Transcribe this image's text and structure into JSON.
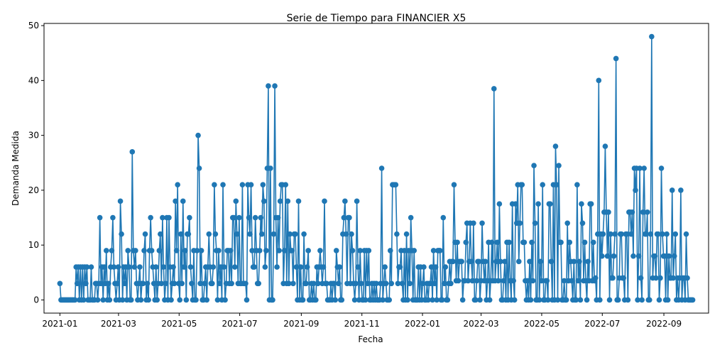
{
  "chart_data": {
    "type": "line",
    "title": "Serie de Tiempo para FINANCIER X5",
    "xlabel": "Fecha",
    "ylabel": "Demanda Medida",
    "xlim": [
      "2020-12-16",
      "2022-10-16"
    ],
    "ylim": [
      -2.4,
      50.4
    ],
    "x_ticks": [
      "2021-01",
      "2021-03",
      "2021-05",
      "2021-07",
      "2021-09",
      "2021-11",
      "2022-01",
      "2022-03",
      "2022-05",
      "2022-07",
      "2022-09"
    ],
    "y_ticks": [
      0,
      10,
      20,
      30,
      40,
      50
    ],
    "grid": false,
    "series": [
      {
        "color": "#1f77b4",
        "marker": "circle",
        "start_date": "2021-01-01",
        "end_date": "2022-09-30",
        "values": [
          3,
          0,
          0,
          0,
          0,
          0,
          0,
          0,
          0,
          0,
          0,
          0,
          0,
          0,
          0,
          6,
          3,
          6,
          0,
          6,
          0,
          6,
          0,
          6,
          3,
          6,
          0,
          0,
          0,
          6,
          0,
          0,
          0,
          3,
          3,
          0,
          3,
          15,
          3,
          6,
          0,
          6,
          3,
          9,
          0,
          3,
          0,
          6,
          9,
          15,
          6,
          3,
          0,
          3,
          6,
          0,
          18,
          12,
          0,
          6,
          3,
          6,
          0,
          9,
          6,
          0,
          0,
          27,
          9,
          6,
          9,
          3,
          0,
          3,
          6,
          0,
          3,
          3,
          9,
          12,
          0,
          3,
          0,
          9,
          15,
          9,
          6,
          3,
          0,
          6,
          0,
          3,
          9,
          12,
          3,
          15,
          6,
          0,
          3,
          15,
          0,
          15,
          6,
          0,
          3,
          6,
          3,
          18,
          9,
          21,
          3,
          0,
          12,
          3,
          18,
          6,
          9,
          0,
          12,
          12,
          15,
          6,
          3,
          0,
          9,
          0,
          0,
          9,
          30,
          24,
          3,
          9,
          0,
          0,
          3,
          6,
          0,
          6,
          12,
          6,
          3,
          3,
          6,
          21,
          12,
          9,
          0,
          9,
          3,
          6,
          0,
          21,
          6,
          0,
          3,
          9,
          9,
          3,
          9,
          3,
          15,
          15,
          6,
          18,
          12,
          3,
          15,
          3,
          3,
          21,
          3,
          3,
          3,
          0,
          21,
          15,
          12,
          21,
          9,
          6,
          6,
          15,
          9,
          3,
          3,
          9,
          15,
          12,
          21,
          18,
          6,
          9,
          24,
          39,
          0,
          24,
          0,
          0,
          12,
          39,
          15,
          6,
          15,
          9,
          18,
          21,
          21,
          3,
          9,
          21,
          3,
          18,
          3,
          12,
          9,
          9,
          3,
          12,
          12,
          6,
          0,
          18,
          0,
          6,
          0,
          0,
          12,
          3,
          3,
          6,
          9,
          0,
          0,
          3,
          0,
          3,
          0,
          0,
          6,
          3,
          6,
          9,
          6,
          3,
          6,
          18,
          3,
          3,
          0,
          0,
          0,
          3,
          0,
          3,
          3,
          0,
          9,
          6,
          3,
          6,
          0,
          0,
          12,
          15,
          18,
          12,
          3,
          15,
          15,
          3,
          12,
          9,
          3,
          0,
          3,
          18,
          6,
          0,
          9,
          3,
          0,
          0,
          9,
          0,
          9,
          3,
          9,
          0,
          0,
          3,
          0,
          3,
          0,
          3,
          0,
          0,
          0,
          3,
          24,
          0,
          3,
          6,
          3,
          0,
          0,
          0,
          9,
          3,
          21,
          21,
          21,
          21,
          12,
          3,
          6,
          6,
          9,
          3,
          0,
          9,
          0,
          12,
          0,
          9,
          3,
          15,
          9,
          0,
          9,
          0,
          0,
          0,
          6,
          0,
          6,
          0,
          3,
          6,
          0,
          0,
          3,
          0,
          3,
          3,
          6,
          0,
          9,
          3,
          6,
          0,
          9,
          9,
          9,
          0,
          0,
          15,
          3,
          6,
          0,
          0,
          3,
          7,
          3,
          7,
          7,
          21,
          10.5,
          3.5,
          10.5,
          3.5,
          7,
          7,
          7,
          0,
          3.5,
          3.5,
          10.5,
          14,
          3.5,
          7,
          14,
          7,
          3.5,
          14,
          0,
          0,
          3.5,
          7,
          7,
          0,
          3.5,
          14,
          7,
          3.5,
          7,
          0,
          3.5,
          10.5,
          0,
          3.5,
          10.5,
          3.5,
          38.5,
          3.5,
          7,
          10.5,
          3.5,
          17.5,
          7,
          0,
          0,
          3.5,
          7,
          0,
          10.5,
          0,
          10.5,
          3.5,
          0,
          17.5,
          3.5,
          0,
          17.5,
          14,
          21,
          7,
          14,
          21,
          21,
          10.5,
          10.5,
          3.5,
          0,
          3.5,
          0,
          7,
          0,
          10.5,
          3.5,
          24.5,
          14,
          0,
          0,
          17.5,
          0,
          7,
          3.5,
          21,
          0,
          0,
          3.5,
          3.5,
          0,
          17.5,
          17.5,
          7,
          0,
          21,
          0,
          28,
          21,
          0,
          24.5,
          10.5,
          10.5,
          0,
          0,
          3.5,
          0,
          0,
          14,
          3.5,
          10.5,
          7,
          3.5,
          0,
          7,
          0,
          0,
          21,
          3.5,
          7,
          0,
          17.5,
          14,
          3.5,
          10.5,
          3.5,
          0,
          7,
          3.5,
          17.5,
          17.5,
          3.5,
          10.5,
          3.5,
          4,
          0,
          12,
          40,
          0,
          12,
          8,
          12,
          16,
          28,
          16,
          8,
          16,
          0,
          12,
          4,
          4,
          8,
          12,
          44,
          0,
          0,
          4,
          12,
          12,
          4,
          4,
          0,
          12,
          12,
          0,
          16,
          16,
          12,
          16,
          8,
          24,
          20,
          24,
          0,
          8,
          24,
          4,
          0,
          16,
          24,
          12,
          12,
          16,
          0,
          0,
          12,
          48,
          4,
          8,
          8,
          4,
          12,
          12,
          0,
          4,
          24,
          12,
          8,
          8,
          0,
          12,
          0,
          8,
          4,
          4,
          20,
          4,
          8,
          12,
          0,
          4,
          0,
          4,
          20,
          0,
          4,
          4,
          0,
          12,
          4,
          0,
          0,
          0,
          0,
          0
        ]
      }
    ]
  }
}
